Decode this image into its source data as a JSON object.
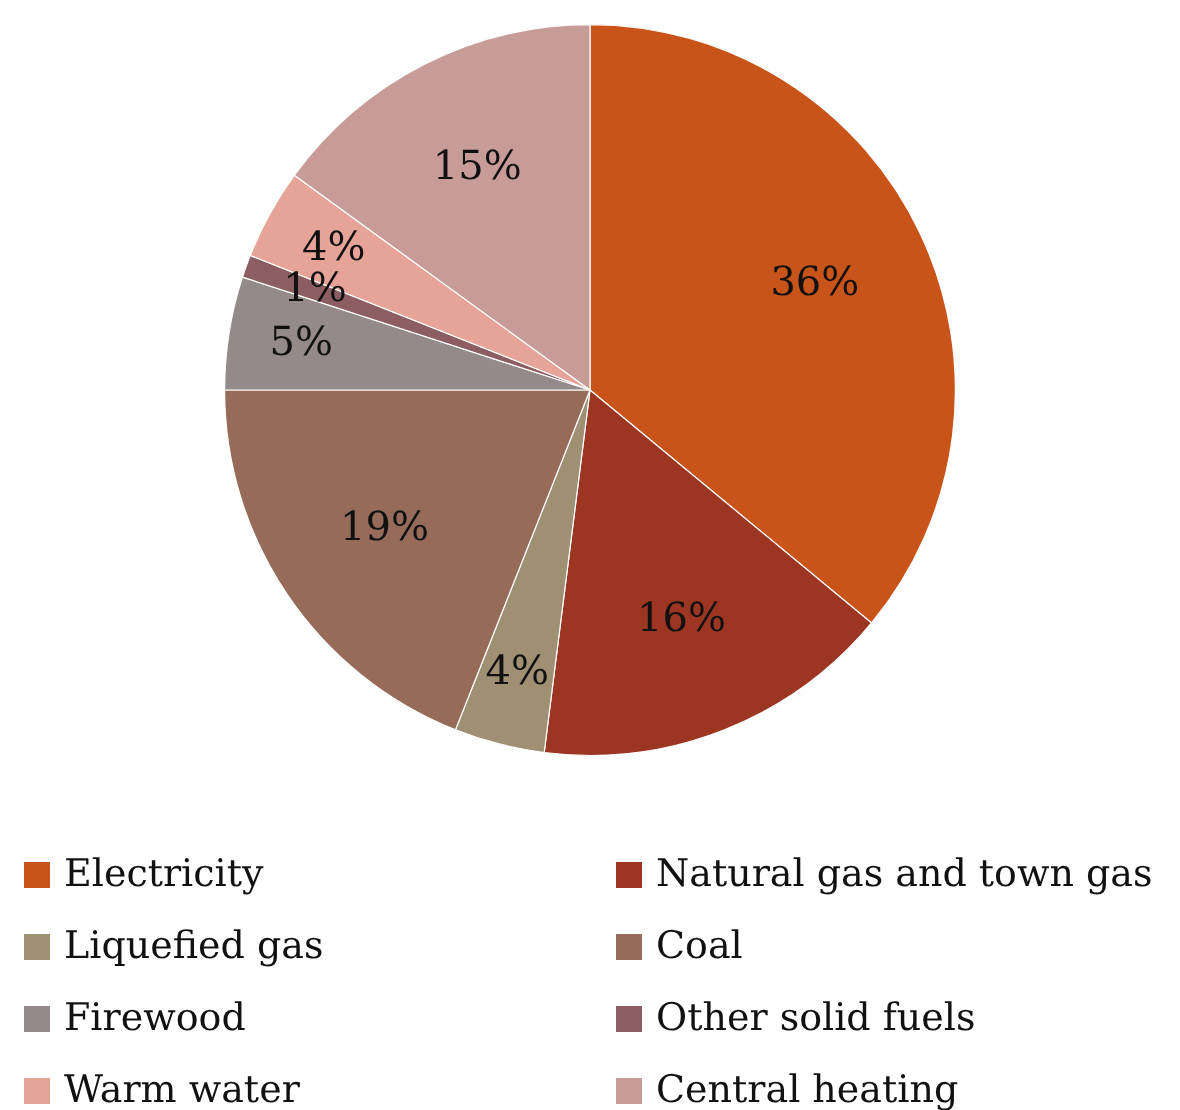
{
  "chart_data": {
    "type": "pie",
    "categories": [
      "Electricity",
      "Natural gas and town gas",
      "Liquefied gas",
      "Coal",
      "Firewood",
      "Other solid fuels",
      "Warm water",
      "Central heating"
    ],
    "values": [
      36,
      16,
      4,
      19,
      5,
      1,
      4,
      15
    ],
    "colors": [
      "#c8541a",
      "#9c3622",
      "#a09073",
      "#966b5a",
      "#948a8a",
      "#8c5e61",
      "#e6a398",
      "#c79c98"
    ],
    "value_labels": [
      "36%",
      "16%",
      "4%",
      "19%",
      "5%",
      "1%",
      "4%",
      "15%"
    ],
    "legend": "bottom"
  }
}
